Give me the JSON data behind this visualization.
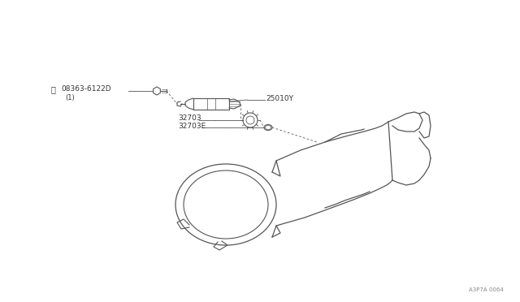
{
  "background_color": "#ffffff",
  "line_color": "#555555",
  "text_color": "#333333",
  "fig_width": 6.4,
  "fig_height": 3.72,
  "diagram_code": "A3P7A 0064",
  "font_size": 6.5,
  "label_s": "Ⓢ",
  "label_part1": "08363-6122D",
  "label_part1_sub": "(1)",
  "label_part2": "25010Y",
  "label_part3": "32703",
  "label_part4": "32703E"
}
